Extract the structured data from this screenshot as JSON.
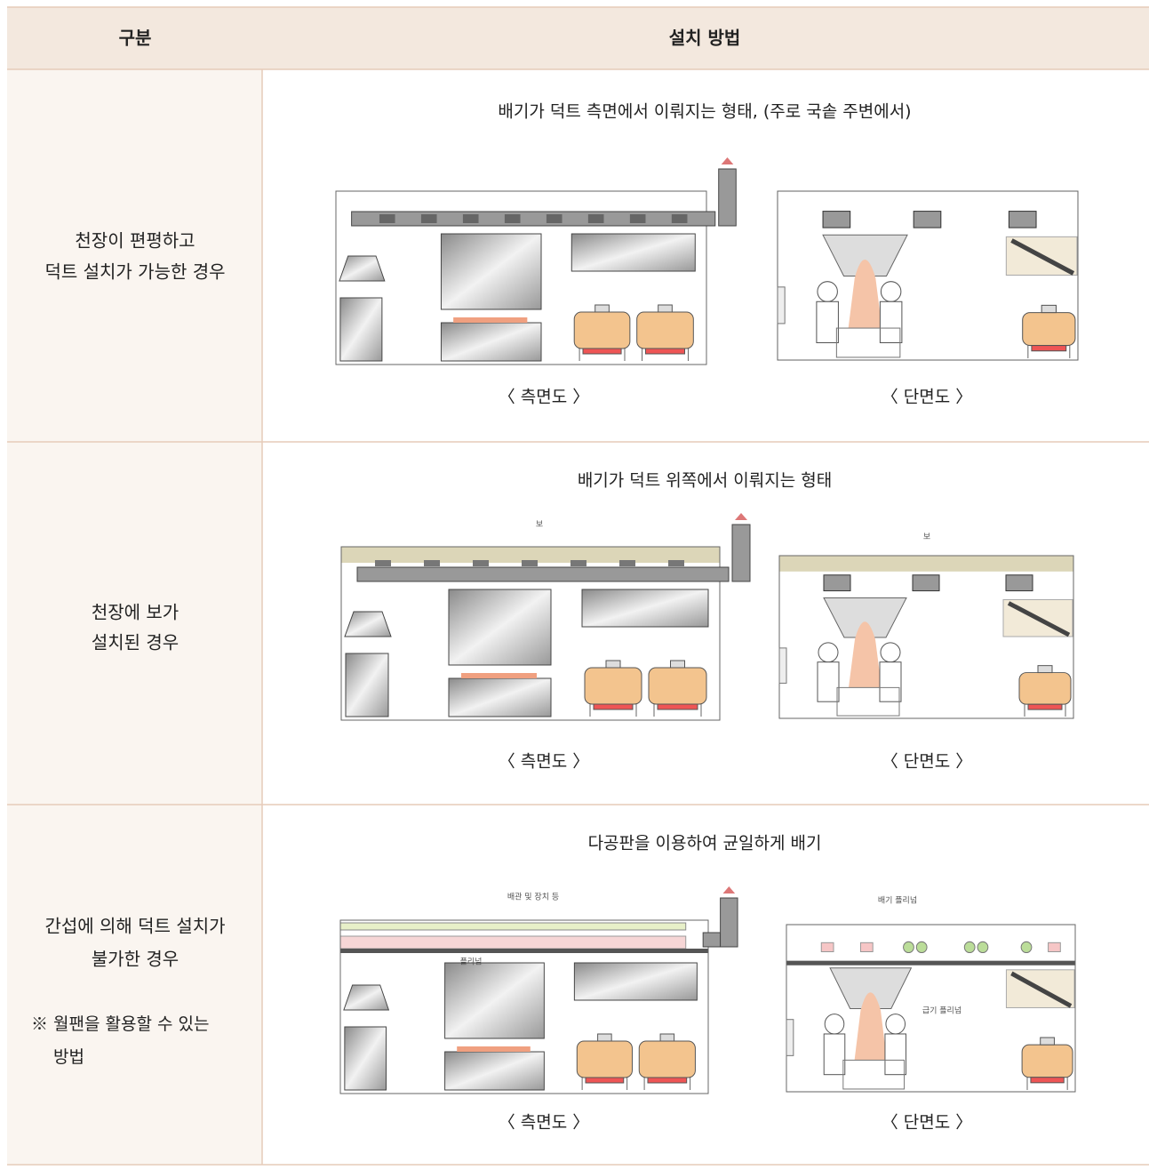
{
  "table": {
    "header": [
      "구분",
      "설치 방법"
    ],
    "rows": [
      {
        "label": [
          "천장이 편평하고",
          "덕트 설치가 가능한 경우"
        ],
        "caption": "배기가 덕트 측면에서 이뤄지는 형태, (주로 국솥 주변에서)",
        "figures": [
          "〈 측면도 〉",
          "〈 단면도 〉"
        ]
      },
      {
        "label": [
          "천장에 보가",
          "설치된 경우"
        ],
        "caption": "배기가 덕트 위쪽에서 이뤄지는 형태",
        "figures": [
          "〈 측면도 〉",
          "〈 단면도 〉"
        ],
        "labels": [
          "보",
          "보"
        ]
      },
      {
        "label": [
          "간섭에 의해 덕트 설치가",
          "불가한 경우"
        ],
        "note": [
          "※ 월팬을 활용할 수 있는",
          "방법"
        ],
        "caption": "다공판을 이용하여 균일하게 배기",
        "figures": [
          "〈 측면도 〉",
          "〈 단면도 〉"
        ],
        "labels": [
          "배관 및 장치 등",
          "플리넘",
          "배기 플리넘",
          "급기 플리넘"
        ]
      }
    ]
  }
}
